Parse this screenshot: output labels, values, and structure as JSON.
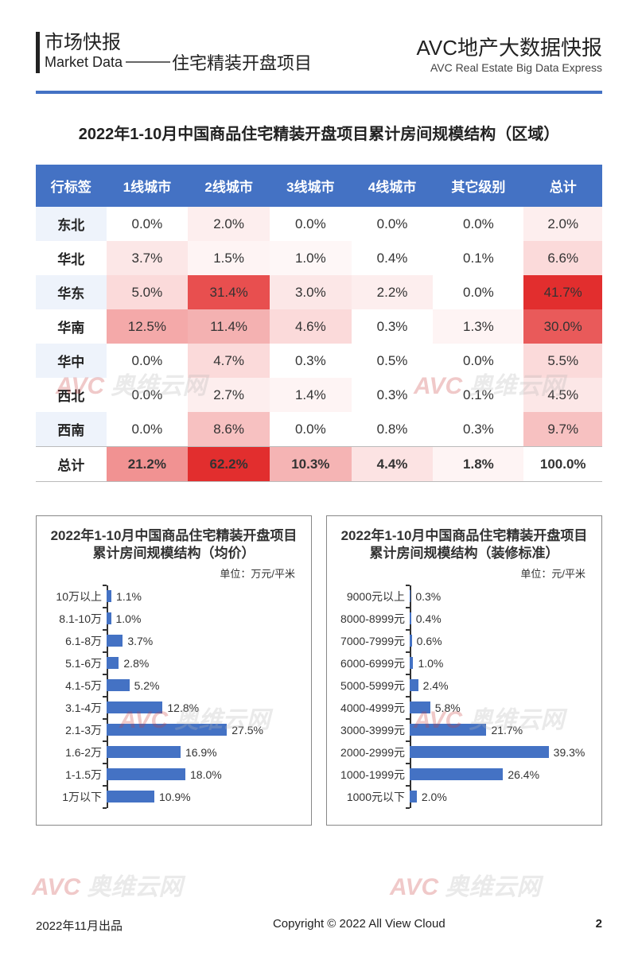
{
  "header": {
    "left_cn": "市场快报",
    "left_en": "Market Data",
    "subtitle": "住宅精装开盘项目",
    "right_cn": "AVC地产大数据快报",
    "right_en": "AVC  Real Estate Big Data Express",
    "line_color": "#4472c4"
  },
  "watermark": {
    "avc": "AVC",
    "rest": " 奥维云网"
  },
  "heatmap": {
    "title": "2022年1-10月中国商品住宅精装开盘项目累计房间规模结构（区域）",
    "columns": [
      "行标签",
      "1线城市",
      "2线城市",
      "3线城市",
      "4线城市",
      "其它级别",
      "总计"
    ],
    "rows": [
      {
        "label": "东北",
        "vals": [
          "0.0%",
          "2.0%",
          "0.0%",
          "0.0%",
          "0.0%",
          "2.0%"
        ],
        "bg": [
          "#ffffff",
          "#fdeeee",
          "#ffffff",
          "#ffffff",
          "#ffffff",
          "#fdeeee"
        ]
      },
      {
        "label": "华北",
        "vals": [
          "3.7%",
          "1.5%",
          "1.0%",
          "0.4%",
          "0.1%",
          "6.6%"
        ],
        "bg": [
          "#fce7e7",
          "#fef4f4",
          "#fef7f7",
          "#ffffff",
          "#ffffff",
          "#fbdada"
        ]
      },
      {
        "label": "华东",
        "vals": [
          "5.0%",
          "31.4%",
          "3.0%",
          "2.2%",
          "0.0%",
          "41.7%"
        ],
        "bg": [
          "#fbdada",
          "#e84f4f",
          "#fce7e7",
          "#fdeeee",
          "#ffffff",
          "#e22e2e"
        ]
      },
      {
        "label": "华南",
        "vals": [
          "12.5%",
          "11.4%",
          "4.6%",
          "0.3%",
          "1.3%",
          "30.0%"
        ],
        "bg": [
          "#f4a9a9",
          "#f4b1b1",
          "#fbdada",
          "#ffffff",
          "#fef4f4",
          "#e95a5a"
        ]
      },
      {
        "label": "华中",
        "vals": [
          "0.0%",
          "4.7%",
          "0.3%",
          "0.5%",
          "0.0%",
          "5.5%"
        ],
        "bg": [
          "#ffffff",
          "#fbdada",
          "#ffffff",
          "#ffffff",
          "#ffffff",
          "#fbdada"
        ]
      },
      {
        "label": "西北",
        "vals": [
          "0.0%",
          "2.7%",
          "1.4%",
          "0.3%",
          "0.1%",
          "4.5%"
        ],
        "bg": [
          "#ffffff",
          "#fdeeee",
          "#fef4f4",
          "#ffffff",
          "#ffffff",
          "#fce7e7"
        ]
      },
      {
        "label": "西南",
        "vals": [
          "0.0%",
          "8.6%",
          "0.0%",
          "0.8%",
          "0.3%",
          "9.7%"
        ],
        "bg": [
          "#ffffff",
          "#f7c1c1",
          "#ffffff",
          "#ffffff",
          "#ffffff",
          "#f7c1c1"
        ]
      }
    ],
    "total": {
      "label": "总计",
      "vals": [
        "21.2%",
        "62.2%",
        "10.3%",
        "4.4%",
        "1.8%",
        "100.0%"
      ],
      "bg": [
        "#f19292",
        "#e22e2e",
        "#f5b4b4",
        "#fce3e3",
        "#fef4f4",
        "#ffffff"
      ]
    },
    "header_bg": "#4472c4",
    "header_fg": "#ffffff",
    "alt_rowhead_bg": "#eef3fb",
    "text_color": "#333333",
    "label_fontsize": 17
  },
  "chart_left": {
    "title": "2022年1-10月中国商品住宅精装开盘项目累计房间规模结构（均价）",
    "unit": "单位：万元/平米",
    "type": "hbar",
    "bar_color": "#4472c4",
    "background_color": "#ffffff",
    "axis_color": "#333333",
    "value_fontsize": 14,
    "label_fontsize": 14,
    "xmax": 40,
    "categories": [
      "10万以上",
      "8.1-10万",
      "6.1-8万",
      "5.1-6万",
      "4.1-5万",
      "3.1-4万",
      "2.1-3万",
      "1.6-2万",
      "1-1.5万",
      "1万以下"
    ],
    "values": [
      1.1,
      1.0,
      3.7,
      2.8,
      5.2,
      12.8,
      27.5,
      16.9,
      18.0,
      10.9
    ],
    "value_labels": [
      "1.1%",
      "1.0%",
      "3.7%",
      "2.8%",
      "5.2%",
      "12.8%",
      "27.5%",
      "16.9%",
      "18.0%",
      "10.9%"
    ]
  },
  "chart_right": {
    "title": "2022年1-10月中国商品住宅精装开盘项目累计房间规模结构（装修标准）",
    "unit": "单位：元/平米",
    "type": "hbar",
    "bar_color": "#4472c4",
    "background_color": "#ffffff",
    "axis_color": "#333333",
    "value_fontsize": 14,
    "label_fontsize": 14,
    "xmax": 45,
    "categories": [
      "9000元以上",
      "8000-8999元",
      "7000-7999元",
      "6000-6999元",
      "5000-5999元",
      "4000-4999元",
      "3000-3999元",
      "2000-2999元",
      "1000-1999元",
      "1000元以下"
    ],
    "values": [
      0.3,
      0.4,
      0.6,
      1.0,
      2.4,
      5.8,
      21.7,
      39.3,
      26.4,
      2.0
    ],
    "value_labels": [
      "0.3%",
      "0.4%",
      "0.6%",
      "1.0%",
      "2.4%",
      "5.8%",
      "21.7%",
      "39.3%",
      "26.4%",
      "2.0%"
    ]
  },
  "footer": {
    "left": "2022年11月出品",
    "mid": "Copyright © 2022  All View Cloud",
    "page": "2"
  }
}
